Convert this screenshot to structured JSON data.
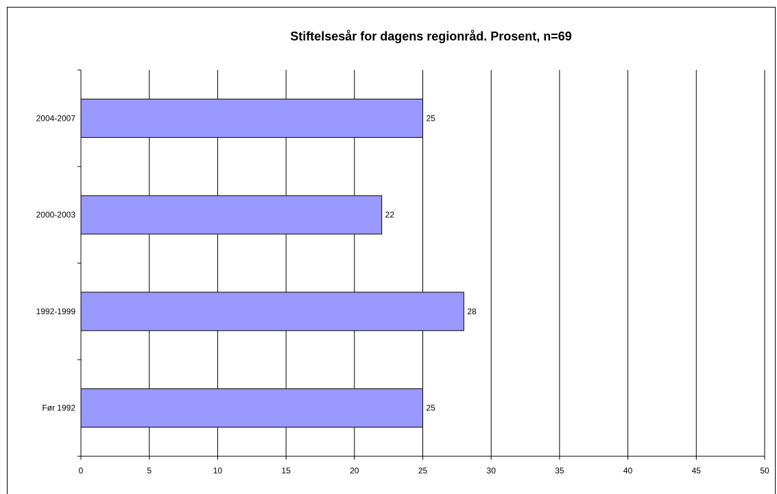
{
  "chart_data": {
    "type": "bar",
    "orientation": "horizontal",
    "title": "Stiftelsesår for dagens regionråd. Prosent, n=69",
    "categories": [
      "2004-2007",
      "2000-2003",
      "1992-1999",
      "Før 1992"
    ],
    "values": [
      25,
      22,
      28,
      25
    ],
    "data_labels": [
      "25",
      "22",
      "28",
      "25"
    ],
    "xlim": [
      0,
      50
    ],
    "x_ticks": [
      0,
      5,
      10,
      15,
      20,
      25,
      30,
      35,
      40,
      45,
      50
    ],
    "x_tick_labels": [
      "0",
      "5",
      "10",
      "15",
      "20",
      "25",
      "30",
      "35",
      "40",
      "45",
      "50"
    ],
    "xlabel": "",
    "ylabel": "",
    "grid": "vertical",
    "legend": "none",
    "colors": {
      "bar_fill": "#9999ff",
      "bar_stroke": "#000000",
      "gridline": "#000000",
      "axis": "#000000",
      "background": "#ffffff"
    }
  }
}
